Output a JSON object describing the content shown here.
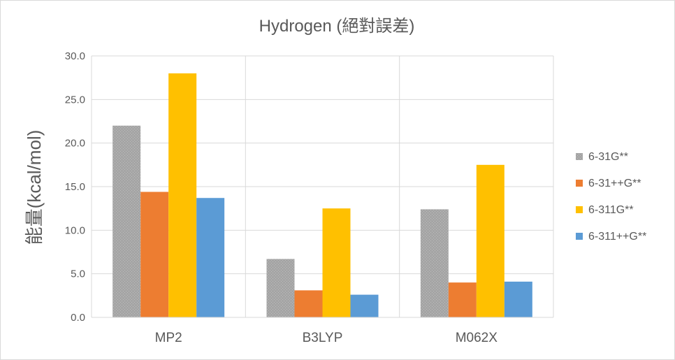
{
  "chart_data": {
    "type": "bar",
    "title": "Hydrogen (絕對誤差)",
    "xlabel": "",
    "ylabel": "能量(kcal/mol)",
    "ylim": [
      0,
      30
    ],
    "yticks": [
      "0.0",
      "5.0",
      "10.0",
      "15.0",
      "20.0",
      "25.0",
      "30.0"
    ],
    "categories": [
      "MP2",
      "B3LYP",
      "M062X"
    ],
    "series": [
      {
        "name": "6-31G**",
        "color": "#a5a5a5",
        "values": [
          22.0,
          6.7,
          12.4
        ]
      },
      {
        "name": "6-31++G**",
        "color": "#ed7d31",
        "values": [
          14.4,
          3.1,
          4.0
        ]
      },
      {
        "name": "6-311G**",
        "color": "#ffc000",
        "values": [
          28.0,
          12.5,
          17.5
        ]
      },
      {
        "name": "6-311++G**",
        "color": "#5b9bd5",
        "values": [
          13.7,
          2.6,
          4.1
        ]
      }
    ],
    "grid": "horizontal and vertical",
    "legend_position": "right"
  }
}
